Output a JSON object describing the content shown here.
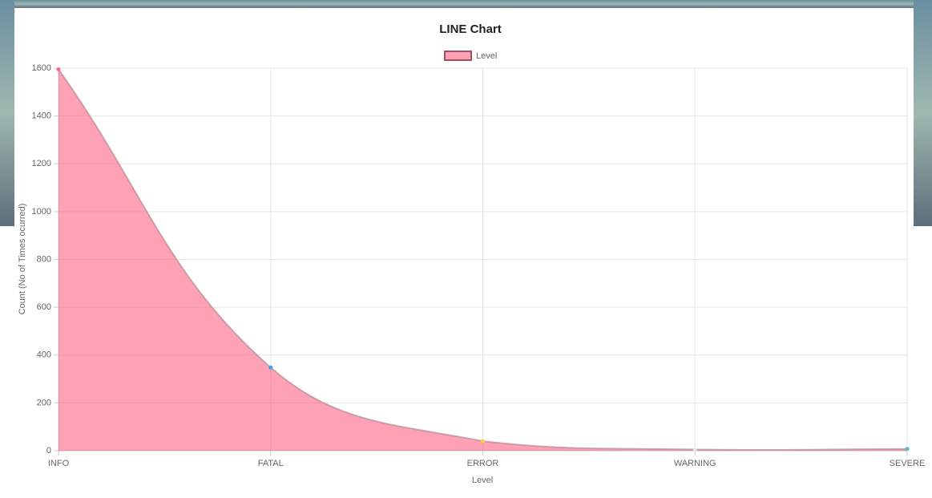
{
  "chart_data": {
    "type": "line",
    "title": "LINE Chart",
    "x_label": "Level",
    "y_label": "Count (No of Times ocurred)",
    "categories": [
      "INFO",
      "FATAL",
      "ERROR",
      "WARNING",
      "SEVERE"
    ],
    "series": [
      {
        "name": "Level",
        "color": "#ff6384",
        "fill": "rgba(255,99,132,0.6)",
        "border_color": "#a05060",
        "point_colors": [
          "#ff6384",
          "#36a2eb",
          "#ffce56",
          "#e8e8f0",
          "#4bc0c0"
        ],
        "values": [
          1595,
          348,
          40,
          5,
          7
        ]
      }
    ],
    "ylim": [
      0,
      1600
    ],
    "yticks": [
      0,
      200,
      400,
      600,
      800,
      1000,
      1200,
      1400,
      1600
    ],
    "grid": true,
    "legend": "top"
  }
}
